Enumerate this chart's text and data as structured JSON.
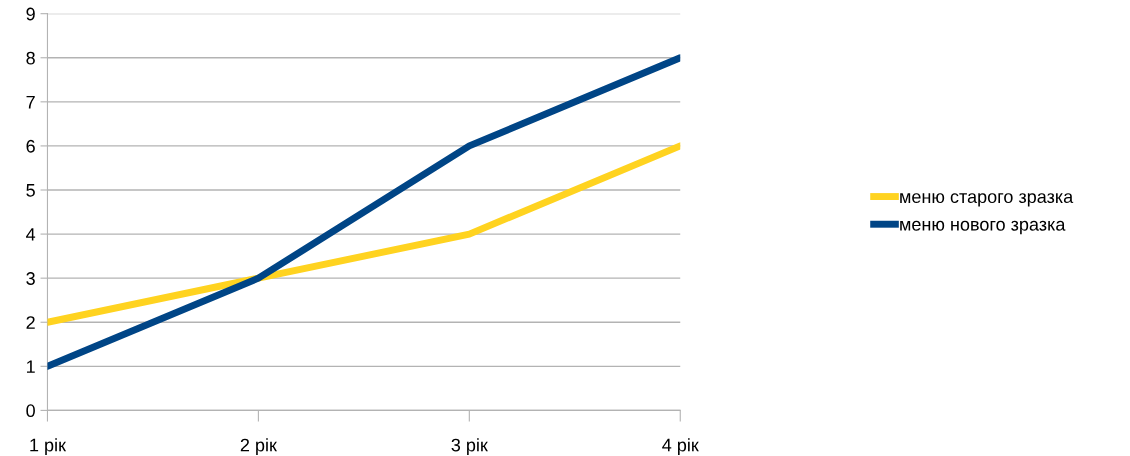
{
  "chart_data": {
    "type": "line",
    "categories": [
      "1 рік",
      "2 рік",
      "3 рік",
      "4 рік"
    ],
    "series": [
      {
        "name": "меню старого зразка",
        "color": "#ffd320",
        "values": [
          2,
          3,
          4,
          6
        ]
      },
      {
        "name": "меню нового зразка",
        "color": "#004586",
        "values": [
          1,
          3,
          6,
          8
        ]
      }
    ],
    "ylim": [
      0,
      9
    ],
    "yticks": [
      0,
      1,
      2,
      3,
      4,
      5,
      6,
      7,
      8,
      9
    ],
    "grid": "y",
    "legend": "right",
    "marker": "none",
    "line_style": "solid"
  }
}
